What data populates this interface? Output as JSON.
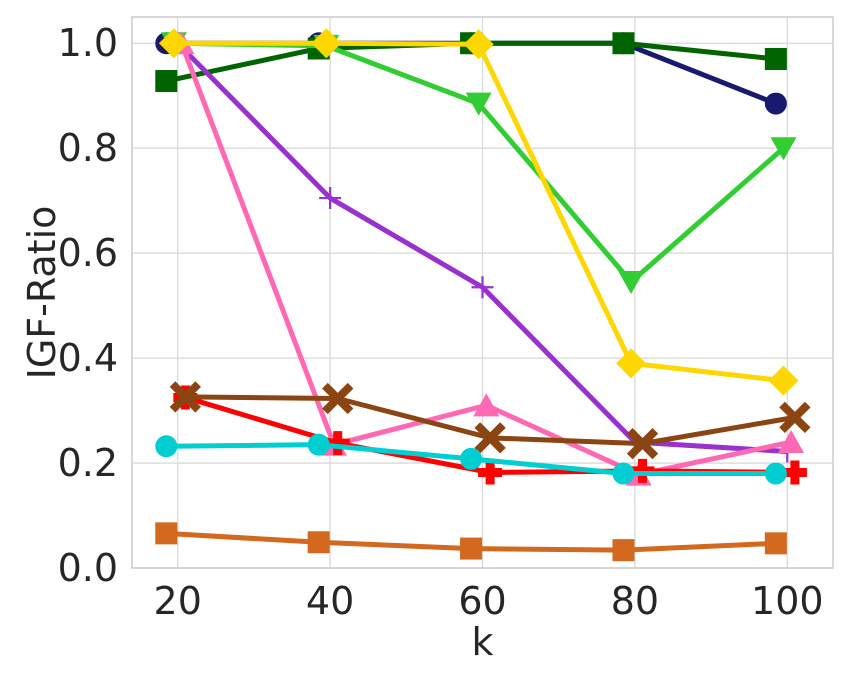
{
  "chart_data": {
    "type": "line",
    "xlabel": "k",
    "ylabel": "IGF-Ratio",
    "xlim": [
      14,
      106
    ],
    "ylim": [
      0,
      1.05
    ],
    "x_ticks": [
      "20",
      "40",
      "60",
      "80",
      "100"
    ],
    "y_ticks": [
      "0.0",
      "0.2",
      "0.4",
      "0.6",
      "0.8",
      "1.0"
    ],
    "x_tick_values": [
      20,
      40,
      60,
      80,
      100
    ],
    "y_tick_values": [
      0,
      0.2,
      0.4,
      0.6,
      0.8,
      1.0
    ],
    "grid": true,
    "legend": "none",
    "series": [
      {
        "color": "#191970",
        "marker": "circle",
        "x": [
          18.5,
          38.5,
          58.5,
          78.5,
          98.5
        ],
        "values": [
          1.0,
          1.0,
          1.0,
          1.0,
          0.885
        ]
      },
      {
        "color": "#006400",
        "marker": "square",
        "x": [
          18.5,
          38.5,
          58.5,
          78.5,
          98.5
        ],
        "values": [
          0.928,
          0.99,
          1.0,
          1.0,
          0.97
        ]
      },
      {
        "color": "#32cd32",
        "marker": "triangle-down",
        "x": [
          19.5,
          39.5,
          59.5,
          79.5,
          99.5
        ],
        "values": [
          1.0,
          0.995,
          0.885,
          0.545,
          0.8
        ]
      },
      {
        "color": "#9932cc",
        "marker": "plus-thin",
        "x": [
          20,
          40,
          60,
          80,
          100
        ],
        "values": [
          1.0,
          0.705,
          0.535,
          0.24,
          0.222
        ]
      },
      {
        "color": "#ff69b4",
        "marker": "triangle-up",
        "x": [
          20.5,
          40.5,
          60.5,
          80.5,
          100.5
        ],
        "values": [
          1.0,
          0.235,
          0.31,
          0.178,
          0.24
        ]
      },
      {
        "color": "#ffd700",
        "marker": "diamond",
        "x": [
          19.5,
          39.5,
          59.5,
          79.5,
          99.5
        ],
        "values": [
          1.0,
          1.0,
          0.998,
          0.39,
          0.357
        ]
      },
      {
        "color": "#ff0000",
        "marker": "plus-thick",
        "x": [
          21,
          41,
          61,
          81,
          101
        ],
        "values": [
          0.325,
          0.238,
          0.182,
          0.185,
          0.182
        ]
      },
      {
        "color": "#8b4513",
        "marker": "x-thick",
        "x": [
          21,
          41,
          61,
          81,
          101
        ],
        "values": [
          0.326,
          0.323,
          0.248,
          0.237,
          0.287
        ]
      },
      {
        "color": "#00ced1",
        "marker": "circle",
        "x": [
          18.5,
          38.5,
          58.5,
          78.5,
          98.5
        ],
        "values": [
          0.232,
          0.235,
          0.208,
          0.18,
          0.18
        ]
      },
      {
        "color": "#d2691e",
        "marker": "square",
        "x": [
          18.5,
          38.5,
          58.5,
          78.5,
          98.5
        ],
        "values": [
          0.066,
          0.049,
          0.037,
          0.034,
          0.047
        ]
      }
    ]
  }
}
